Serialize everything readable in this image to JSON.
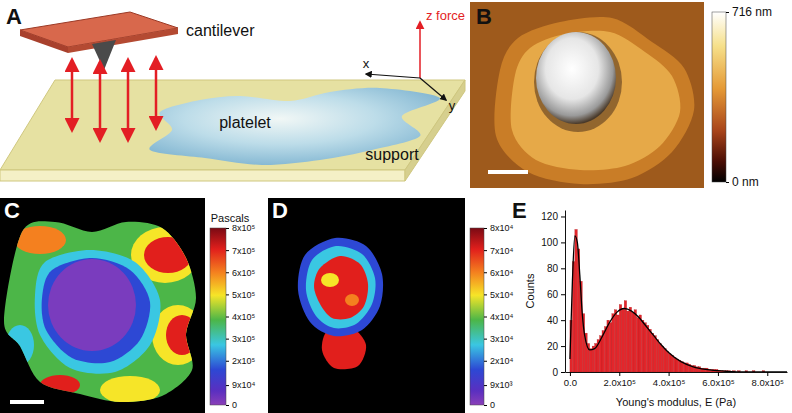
{
  "panels": {
    "A": {
      "label": "A",
      "cantilever": "cantilever",
      "platelet": "platelet",
      "support": "support",
      "axes": {
        "z": "z force",
        "x": "x",
        "y": "y"
      }
    },
    "B": {
      "label": "B",
      "colorbar": {
        "range": [
          0,
          716
        ],
        "ticks": [
          {
            "value": 716,
            "label": "716 nm"
          },
          {
            "value": 0,
            "label": "0 nm"
          }
        ]
      }
    },
    "C": {
      "label": "C",
      "colorbar": {
        "title": "Pascals",
        "range": [
          0,
          800000
        ],
        "ticks": [
          {
            "value": 800000,
            "label": "8x10⁵"
          },
          {
            "value": 700000,
            "label": "7x10⁵"
          },
          {
            "value": 600000,
            "label": "6x10⁵"
          },
          {
            "value": 500000,
            "label": "5x10⁵"
          },
          {
            "value": 400000,
            "label": "4x10⁵"
          },
          {
            "value": 300000,
            "label": "3x10⁵"
          },
          {
            "value": 200000,
            "label": "2x10⁵"
          },
          {
            "value": 90000,
            "label": "9x10⁴"
          },
          0
        ]
      }
    },
    "D": {
      "label": "D",
      "colorbar": {
        "range": [
          0,
          80000
        ],
        "ticks": [
          {
            "value": 80000,
            "label": "8x10⁴"
          },
          {
            "value": 70000,
            "label": "7x10⁴"
          },
          {
            "value": 60000,
            "label": "6x10⁴"
          },
          {
            "value": 50000,
            "label": "5x10⁴"
          },
          {
            "value": 40000,
            "label": "4x10⁴"
          },
          {
            "value": 30000,
            "label": "3x10⁴"
          },
          {
            "value": 20000,
            "label": "2x10⁴"
          },
          {
            "value": 9000,
            "label": "9x10³"
          },
          0
        ]
      }
    }
  },
  "chart_data": {
    "type": "histogram",
    "panel_label": "E",
    "xlabel": "Young's modulus, E (Pa)",
    "ylabel": "Counts",
    "color": "#e3262b",
    "bins": [
      0,
      10000,
      20000,
      30000,
      40000,
      50000,
      60000,
      70000,
      80000,
      90000,
      100000,
      110000,
      120000,
      130000,
      140000,
      150000,
      160000,
      170000,
      180000,
      190000,
      200000,
      210000,
      220000,
      230000,
      240000,
      250000,
      260000,
      270000,
      280000,
      290000,
      300000,
      310000,
      320000,
      330000,
      340000,
      350000,
      360000,
      370000,
      380000,
      390000,
      400000,
      410000,
      420000,
      430000,
      440000,
      450000,
      460000,
      470000,
      480000,
      490000,
      500000,
      510000,
      520000,
      530000,
      540000,
      550000,
      560000,
      570000,
      580000,
      590000,
      600000,
      610000,
      620000,
      630000,
      640000,
      650000,
      660000,
      670000,
      680000,
      690000,
      700000,
      710000,
      720000,
      730000,
      740000,
      750000,
      760000,
      770000,
      780000,
      790000,
      800000
    ],
    "values": [
      40,
      85,
      110,
      95,
      70,
      45,
      30,
      22,
      18,
      20,
      22,
      25,
      28,
      32,
      35,
      40,
      38,
      45,
      48,
      44,
      52,
      49,
      55,
      47,
      50,
      46,
      48,
      42,
      44,
      40,
      38,
      36,
      33,
      30,
      28,
      25,
      22,
      20,
      18,
      16,
      14,
      13,
      11,
      10,
      9,
      8,
      7,
      7,
      6,
      5,
      5,
      4,
      4,
      3,
      3,
      3,
      2,
      2,
      2,
      2,
      1,
      1,
      1,
      1,
      1,
      0,
      1,
      0,
      1,
      0,
      0,
      1,
      0,
      0,
      1,
      0,
      0,
      0,
      1,
      0
    ],
    "fit": {
      "type": "line",
      "color": "#000000",
      "x": [
        0,
        10000,
        20000,
        30000,
        40000,
        50000,
        60000,
        80000,
        100000,
        130000,
        160000,
        190000,
        220000,
        250000,
        280000,
        310000,
        340000,
        370000,
        400000,
        450000,
        500000,
        550000,
        600000,
        700000,
        800000,
        880000
      ],
      "values": [
        10,
        70,
        105,
        100,
        75,
        45,
        28,
        17,
        18,
        27,
        38,
        46,
        49,
        47,
        42,
        35,
        28,
        21,
        15,
        8,
        4,
        2,
        1,
        0,
        0,
        0
      ]
    },
    "xlim": [
      -20000,
      880000
    ],
    "xticks": [
      {
        "value": 0,
        "label": "0.0"
      },
      {
        "value": 200000,
        "label": "2.0x10⁵"
      },
      {
        "value": 400000,
        "label": "4.0x10⁵"
      },
      {
        "value": 600000,
        "label": "6.0x10⁵"
      },
      {
        "value": 800000,
        "label": "8.0x10⁵"
      }
    ],
    "ylim": [
      0,
      125
    ],
    "yticks": [
      0,
      20,
      40,
      60,
      80,
      100,
      120
    ]
  }
}
